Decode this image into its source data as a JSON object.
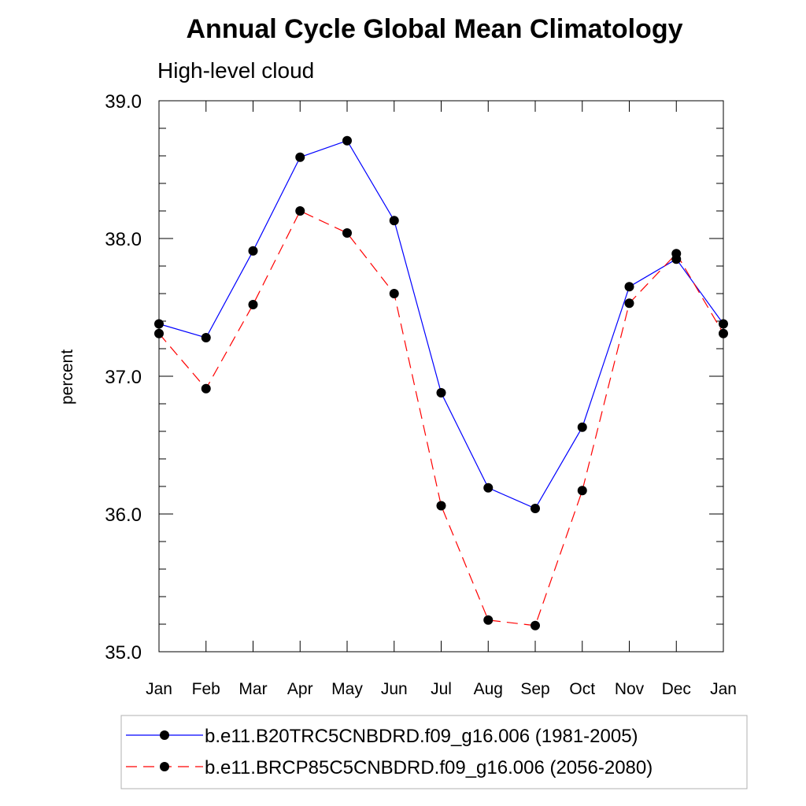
{
  "chart_data": {
    "type": "line",
    "title": "Annual Cycle Global Mean Climatology",
    "subtitle": "High-level cloud",
    "xlabel": "",
    "ylabel": "percent",
    "categories": [
      "Jan",
      "Feb",
      "Mar",
      "Apr",
      "May",
      "Jun",
      "Jul",
      "Aug",
      "Sep",
      "Oct",
      "Nov",
      "Dec",
      "Jan"
    ],
    "ylim": [
      35.0,
      39.0
    ],
    "yticks": [
      "35.0",
      "36.0",
      "37.0",
      "38.0",
      "39.0"
    ],
    "grid": false,
    "legend_position": "bottom",
    "series": [
      {
        "name": "b.e11.B20TRC5CNBDRD.f09_g16.006 (1981-2005)",
        "color": "#0000ff",
        "line_style": "solid",
        "marker": "filled-circle",
        "values": [
          37.38,
          37.28,
          37.91,
          38.59,
          38.71,
          38.13,
          36.88,
          36.19,
          36.04,
          36.63,
          37.65,
          37.85,
          37.38
        ]
      },
      {
        "name": "b.e11.BRCP85C5CNBDRD.f09_g16.006 (2056-2080)",
        "color": "#ff0000",
        "line_style": "dashed",
        "marker": "filled-circle",
        "values": [
          37.31,
          36.91,
          37.52,
          38.2,
          38.04,
          37.6,
          36.06,
          35.23,
          35.19,
          36.17,
          37.53,
          37.89,
          37.31
        ]
      }
    ]
  }
}
